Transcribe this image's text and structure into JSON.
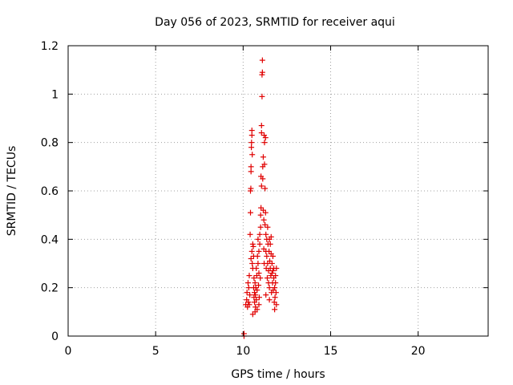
{
  "chart_data": {
    "type": "scatter",
    "title": "Day 056 of 2023, SRMTID for receiver aqui",
    "xlabel": "GPS time / hours",
    "ylabel": "SRMTID / TECUs",
    "xlim": [
      0,
      24
    ],
    "ylim": [
      0,
      1.2
    ],
    "xticks": [
      0,
      5,
      10,
      15,
      20
    ],
    "xtick_labels": [
      "0",
      "5",
      "10",
      "15",
      "20"
    ],
    "yticks": [
      0,
      0.2,
      0.4,
      0.6,
      0.8,
      1.0,
      1.2
    ],
    "ytick_labels": [
      "0",
      "0.2",
      "0.4",
      "0.6",
      "0.8",
      "1",
      "1.2"
    ],
    "grid": true,
    "marker": "plus",
    "color": "#e00000",
    "series": [
      {
        "name": "SRMTID",
        "points": [
          [
            10.05,
            0.0
          ],
          [
            10.05,
            0.01
          ],
          [
            10.15,
            0.13
          ],
          [
            10.2,
            0.15
          ],
          [
            10.22,
            0.18
          ],
          [
            10.25,
            0.12
          ],
          [
            10.28,
            0.22
          ],
          [
            10.3,
            0.14
          ],
          [
            10.32,
            0.2
          ],
          [
            10.35,
            0.25
          ],
          [
            10.35,
            0.13
          ],
          [
            10.38,
            0.17
          ],
          [
            10.4,
            0.42
          ],
          [
            10.42,
            0.51
          ],
          [
            10.42,
            0.6
          ],
          [
            10.44,
            0.61
          ],
          [
            10.45,
            0.68
          ],
          [
            10.45,
            0.7
          ],
          [
            10.47,
            0.78
          ],
          [
            10.48,
            0.8
          ],
          [
            10.5,
            0.83
          ],
          [
            10.5,
            0.85
          ],
          [
            10.52,
            0.75
          ],
          [
            10.45,
            0.32
          ],
          [
            10.5,
            0.35
          ],
          [
            10.52,
            0.3
          ],
          [
            10.55,
            0.28
          ],
          [
            10.55,
            0.38
          ],
          [
            10.58,
            0.37
          ],
          [
            10.6,
            0.33
          ],
          [
            10.6,
            0.2
          ],
          [
            10.62,
            0.24
          ],
          [
            10.62,
            0.16
          ],
          [
            10.65,
            0.14
          ],
          [
            10.65,
            0.18
          ],
          [
            10.68,
            0.22
          ],
          [
            10.7,
            0.12
          ],
          [
            10.7,
            0.17
          ],
          [
            10.72,
            0.2
          ],
          [
            10.75,
            0.15
          ],
          [
            10.75,
            0.28
          ],
          [
            10.78,
            0.25
          ],
          [
            10.8,
            0.11
          ],
          [
            10.8,
            0.19
          ],
          [
            10.82,
            0.33
          ],
          [
            10.85,
            0.3
          ],
          [
            10.85,
            0.4
          ],
          [
            10.88,
            0.21
          ],
          [
            10.9,
            0.35
          ],
          [
            10.9,
            0.26
          ],
          [
            10.92,
            0.16
          ],
          [
            10.95,
            0.38
          ],
          [
            10.95,
            0.42
          ],
          [
            10.98,
            0.24
          ],
          [
            11.0,
            0.45
          ],
          [
            11.0,
            0.5
          ],
          [
            11.02,
            0.53
          ],
          [
            11.02,
            0.66
          ],
          [
            11.05,
            0.62
          ],
          [
            11.05,
            0.84
          ],
          [
            11.05,
            0.87
          ],
          [
            11.08,
            0.99
          ],
          [
            11.08,
            1.08
          ],
          [
            11.1,
            1.09
          ],
          [
            11.1,
            1.14
          ],
          [
            11.12,
            0.7
          ],
          [
            11.12,
            0.65
          ],
          [
            11.15,
            0.74
          ],
          [
            11.15,
            0.52
          ],
          [
            11.18,
            0.48
          ],
          [
            11.18,
            0.36
          ],
          [
            11.2,
            0.3
          ],
          [
            11.2,
            0.83
          ],
          [
            11.22,
            0.8
          ],
          [
            11.22,
            0.71
          ],
          [
            11.25,
            0.61
          ],
          [
            11.25,
            0.46
          ],
          [
            11.28,
            0.51
          ],
          [
            11.28,
            0.82
          ],
          [
            11.3,
            0.42
          ],
          [
            11.3,
            0.35
          ],
          [
            11.32,
            0.28
          ],
          [
            11.35,
            0.4
          ],
          [
            11.35,
            0.33
          ],
          [
            11.38,
            0.24
          ],
          [
            11.4,
            0.3
          ],
          [
            11.4,
            0.45
          ],
          [
            11.42,
            0.38
          ],
          [
            11.45,
            0.22
          ],
          [
            11.45,
            0.27
          ],
          [
            11.48,
            0.35
          ],
          [
            11.5,
            0.4
          ],
          [
            11.5,
            0.2
          ],
          [
            11.52,
            0.31
          ],
          [
            11.55,
            0.28
          ],
          [
            11.55,
            0.38
          ],
          [
            11.58,
            0.25
          ],
          [
            11.6,
            0.41
          ],
          [
            11.6,
            0.34
          ],
          [
            11.62,
            0.18
          ],
          [
            11.65,
            0.3
          ],
          [
            11.65,
            0.26
          ],
          [
            11.68,
            0.22
          ],
          [
            11.7,
            0.27
          ],
          [
            11.7,
            0.33
          ],
          [
            11.72,
            0.19
          ],
          [
            11.75,
            0.24
          ],
          [
            11.75,
            0.28
          ],
          [
            11.78,
            0.14
          ],
          [
            11.8,
            0.2
          ],
          [
            11.8,
            0.11
          ],
          [
            11.82,
            0.16
          ],
          [
            11.85,
            0.25
          ],
          [
            11.85,
            0.22
          ],
          [
            11.88,
            0.18
          ],
          [
            11.9,
            0.28
          ],
          [
            11.9,
            0.13
          ],
          [
            10.55,
            0.09
          ],
          [
            10.68,
            0.1
          ],
          [
            10.9,
            0.13
          ],
          [
            11.3,
            0.17
          ],
          [
            11.5,
            0.15
          ]
        ]
      }
    ]
  }
}
